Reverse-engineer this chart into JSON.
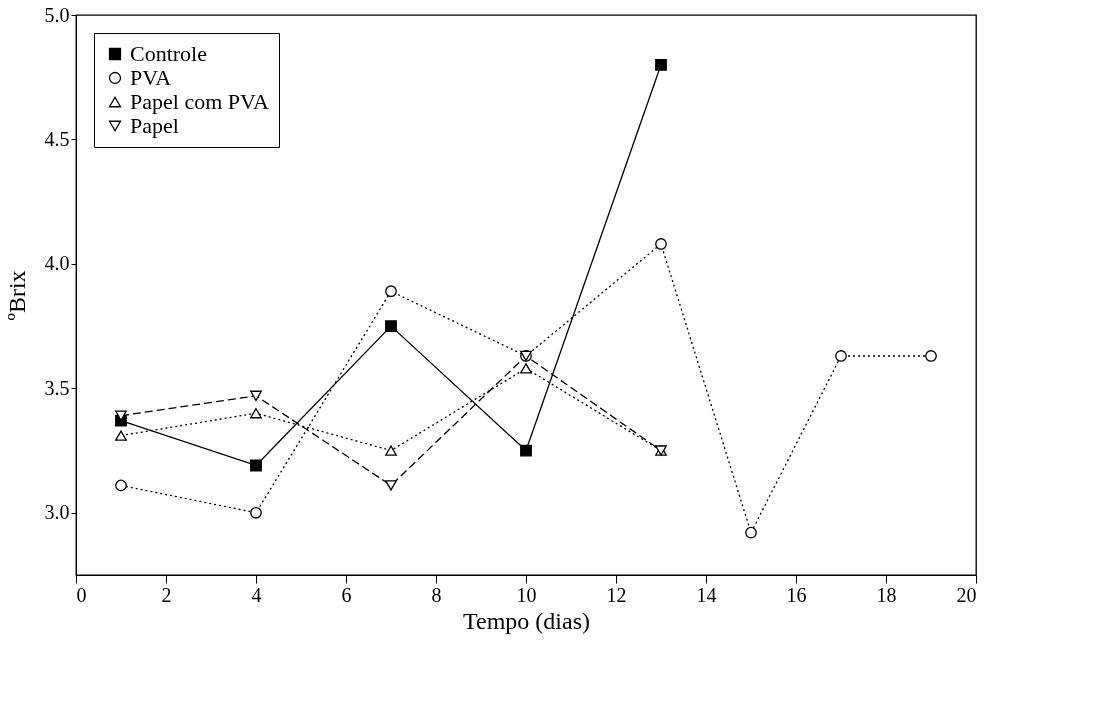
{
  "chart_data": {
    "type": "line",
    "xlabel": "Tempo (dias)",
    "ylabel": "ºBrix",
    "xlim": [
      0,
      20
    ],
    "xticks": [
      0,
      2,
      4,
      6,
      8,
      10,
      12,
      14,
      16,
      18,
      20
    ],
    "ylim": [
      2.75,
      5.0
    ],
    "yticks": [
      {
        "value": 3,
        "label": "3.0"
      },
      3.5,
      {
        "value": 4,
        "label": "4.0"
      },
      4.5,
      {
        "value": 5,
        "label": "5.0"
      }
    ],
    "grid": false,
    "legend": "top left",
    "series": [
      {
        "name": "Controle",
        "color": "#000000",
        "marker": "square",
        "line_style": "solid",
        "x": [
          1,
          4,
          7,
          10,
          13
        ],
        "values": [
          3.37,
          3.19,
          3.75,
          3.25,
          4.8
        ]
      },
      {
        "name": "PVA",
        "color": "#000000",
        "marker": "circle",
        "line_style": "dotted",
        "x": [
          1,
          4,
          7,
          10,
          13,
          15,
          17,
          19
        ],
        "values": [
          3.11,
          3.0,
          3.89,
          3.63,
          4.08,
          2.92,
          3.63,
          3.63
        ]
      },
      {
        "name": "Papel com PVA",
        "color": "#000000",
        "marker": "triangle-up",
        "line_style": "dotted",
        "x": [
          1,
          4,
          7,
          10,
          13
        ],
        "values": [
          3.31,
          3.4,
          3.25,
          3.58,
          3.25
        ]
      },
      {
        "name": "Papel",
        "color": "#000000",
        "marker": "triangle-down",
        "line_style": "dashed",
        "x": [
          1,
          4,
          7,
          10,
          13
        ],
        "values": [
          3.39,
          3.47,
          3.11,
          3.63,
          3.25
        ]
      }
    ]
  }
}
